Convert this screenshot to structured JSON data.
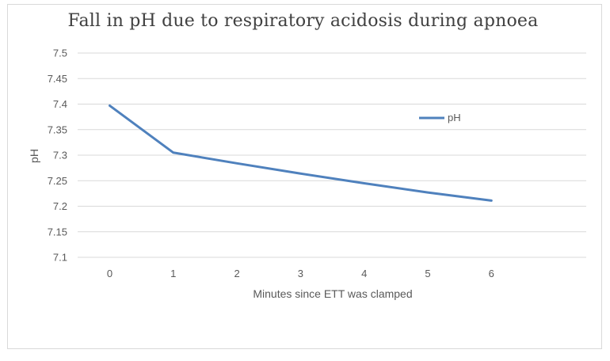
{
  "chart_data": {
    "type": "line",
    "title": "Fall in pH due to respiratory acidosis during apnoea",
    "xlabel": "Minutes since ETT was clamped",
    "ylabel": "pH",
    "categories": [
      "0",
      "1",
      "2",
      "3",
      "4",
      "5",
      "6"
    ],
    "series": [
      {
        "name": "pH",
        "values": [
          7.397,
          7.305,
          7.284,
          7.264,
          7.245,
          7.227,
          7.211
        ],
        "color": "#4f81bd"
      }
    ],
    "ylim": [
      7.1,
      7.5
    ],
    "yticks": [
      "7.1",
      "7.15",
      "7.2",
      "7.25",
      "7.3",
      "7.35",
      "7.4",
      "7.45",
      "7.5"
    ],
    "grid": true,
    "legend": "right"
  }
}
